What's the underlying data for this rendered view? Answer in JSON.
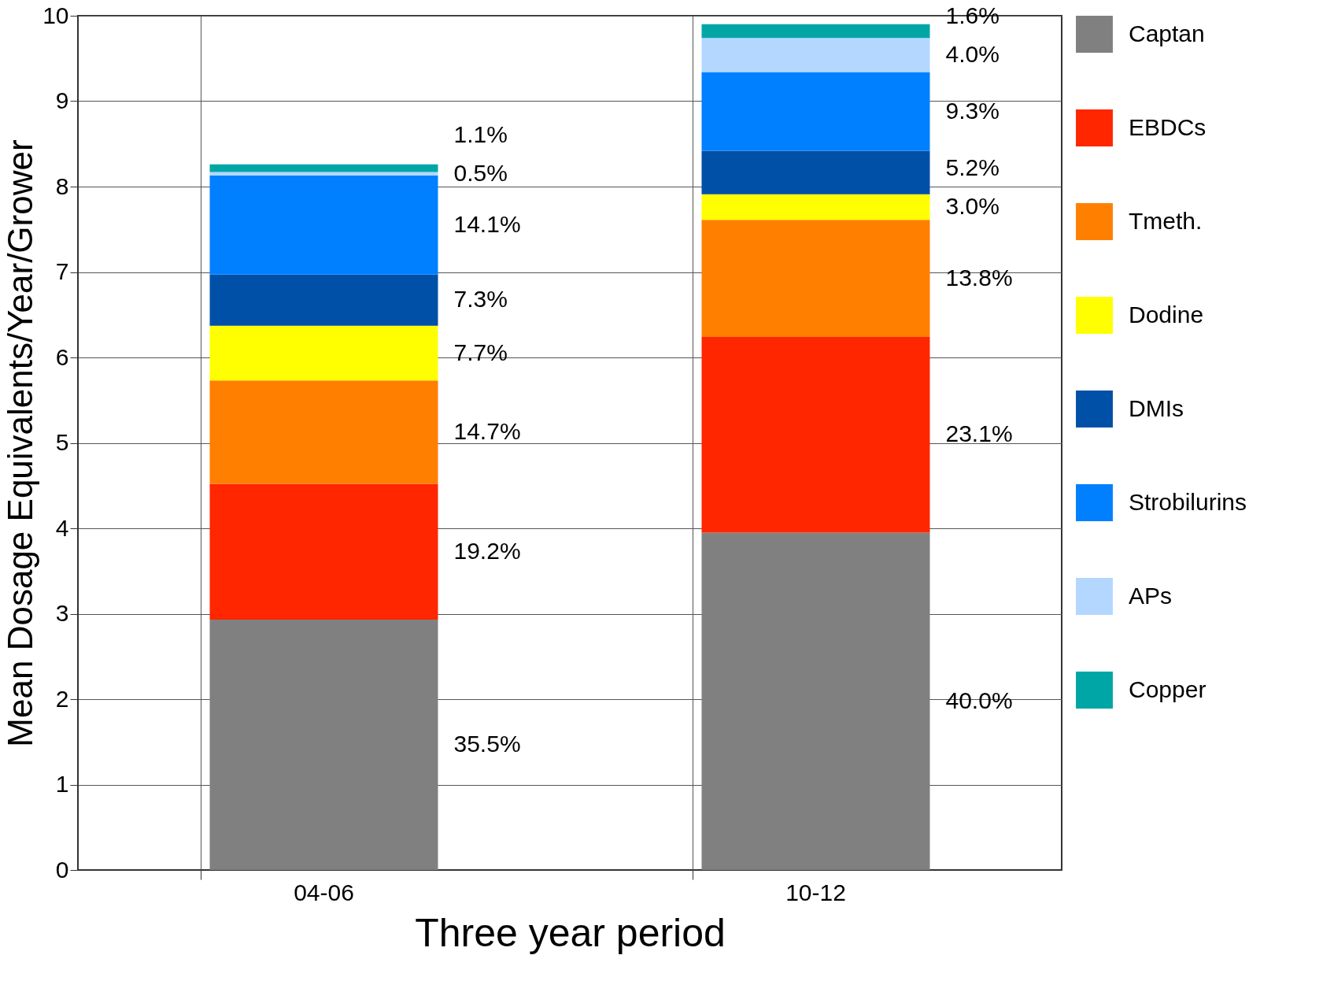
{
  "chart_data": {
    "type": "bar",
    "stacked": true,
    "xlabel": "Three year period",
    "ylabel": "Mean Dosage Equivalents/Year/Grower",
    "categories": [
      "04-06",
      "10-12"
    ],
    "ylim": [
      0,
      10
    ],
    "yticks": [
      0,
      1,
      2,
      3,
      4,
      5,
      6,
      7,
      8,
      9,
      10
    ],
    "grid": true,
    "legend": "right",
    "series": [
      {
        "name": "Captan",
        "color": "#808080",
        "values": [
          2.93,
          3.95
        ]
      },
      {
        "name": "EBDCs",
        "color": "#ff2600",
        "values": [
          1.59,
          2.29
        ]
      },
      {
        "name": "Tmeth.",
        "color": "#ff7f00",
        "values": [
          1.21,
          1.37
        ]
      },
      {
        "name": "Dodine",
        "color": "#ffff00",
        "values": [
          0.64,
          0.3
        ]
      },
      {
        "name": "DMIs",
        "color": "#0050a8",
        "values": [
          0.6,
          0.51
        ]
      },
      {
        "name": "Strobilurins",
        "color": "#0080ff",
        "values": [
          1.16,
          0.92
        ]
      },
      {
        "name": "APs",
        "color": "#b3d7ff",
        "values": [
          0.04,
          0.4
        ]
      },
      {
        "name": "Copper",
        "color": "#00a6a6",
        "values": [
          0.09,
          0.16
        ]
      }
    ],
    "annotations": [
      "1.1%",
      "0.5%",
      "14.1%",
      "7.3%",
      "7.7%",
      "14.7%",
      "19.2%",
      "35.5%",
      "1.6%",
      "4.0%",
      "9.3%",
      "5.2%",
      "3.0%",
      "13.8%",
      "23.1%",
      "40.0%"
    ]
  }
}
